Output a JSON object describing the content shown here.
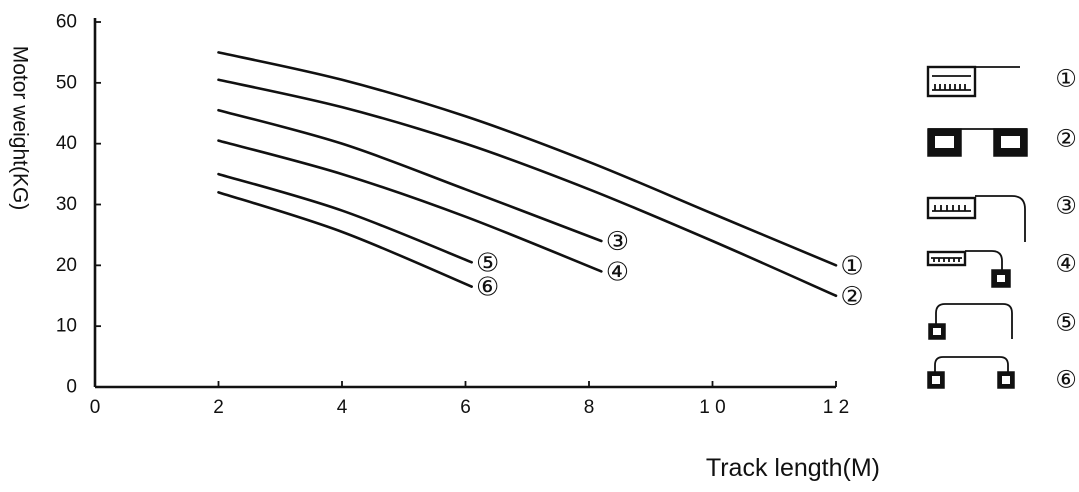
{
  "chart_data": {
    "type": "line",
    "xlabel": "Track length(M)",
    "ylabel": "Motor weight(KG)",
    "xlim": [
      0,
      12
    ],
    "ylim": [
      0,
      60
    ],
    "x_ticks": [
      "0",
      "2",
      "4",
      "6",
      "8",
      "1 0",
      "1 2"
    ],
    "y_ticks": [
      "0",
      "10",
      "20",
      "30",
      "40",
      "50",
      "60"
    ],
    "grid": false,
    "series": [
      {
        "name": "①",
        "x": [
          2,
          4,
          6,
          8,
          10,
          12
        ],
        "y": [
          55,
          50.5,
          44.5,
          37,
          28.5,
          20
        ]
      },
      {
        "name": "②",
        "x": [
          2,
          4,
          6,
          8,
          10,
          12
        ],
        "y": [
          50.5,
          46,
          40,
          32.5,
          24,
          15
        ]
      },
      {
        "name": "③",
        "x": [
          2,
          4,
          6,
          8.2
        ],
        "y": [
          45.5,
          40,
          32.5,
          24
        ]
      },
      {
        "name": "④",
        "x": [
          2,
          4,
          6,
          8.2
        ],
        "y": [
          40.5,
          35,
          28,
          19
        ]
      },
      {
        "name": "⑤",
        "x": [
          2,
          4,
          6.1
        ],
        "y": [
          35,
          29,
          20.5
        ]
      },
      {
        "name": "⑥",
        "x": [
          2,
          4,
          6.1
        ],
        "y": [
          32,
          25.5,
          16.5
        ]
      }
    ],
    "legend_position": "right",
    "legend": [
      "①",
      "②",
      "③",
      "④",
      "⑤",
      "⑥"
    ]
  }
}
